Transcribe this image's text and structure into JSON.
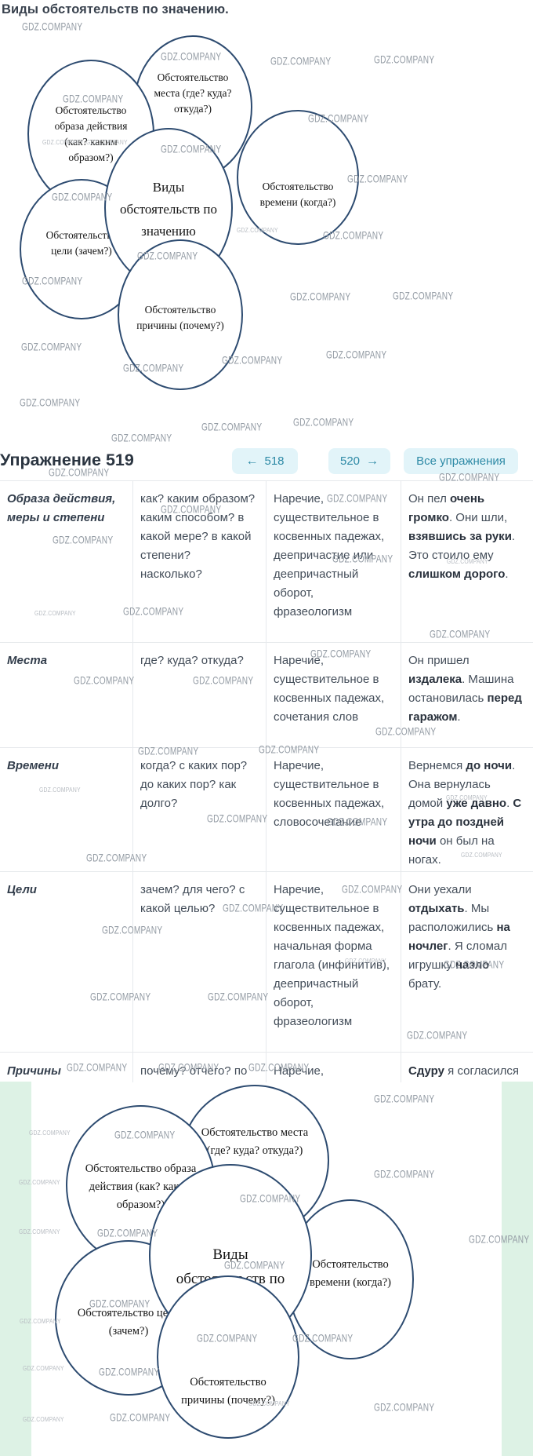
{
  "title": "Виды обстоятельств по значению.",
  "watermark_text": "GDZ.COMPANY",
  "colors": {
    "circle_border": "#2d4b70",
    "button_bg": "#e2f4f9",
    "button_text": "#2e8aa6",
    "green_bg": "#ddf2e5",
    "watermark": "#929aa3",
    "table_line": "#e6e9ec"
  },
  "exercise": {
    "title": "Упражнение 519",
    "prev_arrow": "←",
    "prev": "518",
    "next": "520",
    "next_arrow": "→",
    "all": "Все упражнения"
  },
  "diagram_labels": {
    "center": "Виды обстоятельств по значению",
    "mode": "Обстоятельство образа действия (как? каким образом?)",
    "place": "Обстоятельство места (где? куда? откуда?)",
    "time": "Обстоятельство времени (когда?)",
    "goal": "Обстоятельство цели (зачем?)",
    "reason": "Обстоятельство причины (почему?)"
  },
  "table": {
    "rows": [
      {
        "type": "Образа действия, меры и степени",
        "questions": "как? каким образом? каким способом? в какой мере? в какой степени? насколько?",
        "expressed": "Наречие, существительное в косвенных падежах, деепричастие или деепричастный оборот, фразеологизм",
        "examples": "Он пел **очень громко**. Они шли, **взявшись за руки**. Это стоило ему **слишком дорого**."
      },
      {
        "type": "Места",
        "questions": "где? куда? откуда?",
        "expressed": "Наречие, существительное в косвенных падежах, сочетания слов",
        "examples": "Он пришел **издалека**. Машина остановилась **перед гаражом**."
      },
      {
        "type": "Времени",
        "questions": "когда? с каких пор? до каких пор? как долго?",
        "expressed": "Наречие, существительное в косвенных падежах, словосочетание",
        "examples": "Вернемся **до ночи**. Она вернулась домой **уже давно**. **С утра до поздней ночи** он был на ногах."
      },
      {
        "type": "Цели",
        "questions": "зачем? для чего? с какой целью?",
        "expressed": "Наречие, существительное в косвенных падежах, начальная форма глагола (инфинитив), деепричастный оборот, фразеологизм",
        "examples": "Они уехали **отдыхать**. Мы расположились **на ночлег**. Я сломал игрушку **назло** брату."
      },
      {
        "type": "Причины",
        "questions": "почему? отчего? по",
        "expressed": "Наречие,",
        "examples": "**Сдуру** я согласился"
      }
    ]
  }
}
